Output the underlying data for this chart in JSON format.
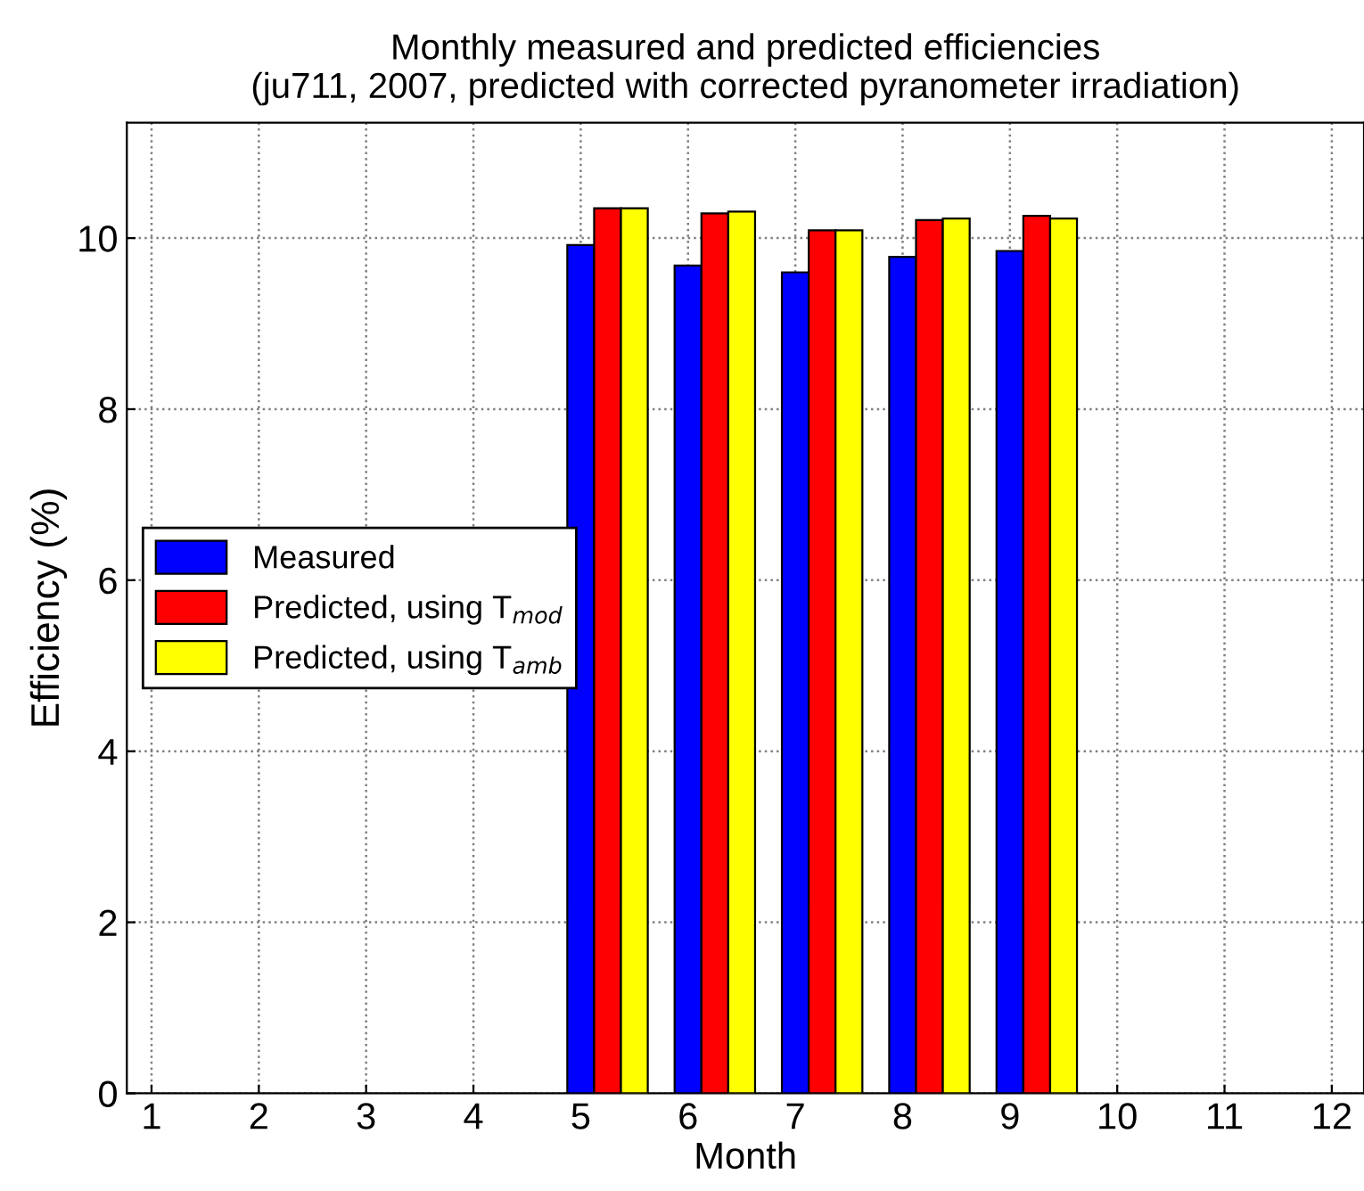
{
  "chart_data": {
    "type": "bar",
    "title": "Monthly measured and predicted efficiencies\n(ju711, 2007, predicted with corrected pyranometer irradiation)",
    "xlabel": "Month",
    "ylabel": "Efficiency (%)",
    "x": [
      5,
      6,
      7,
      8,
      9
    ],
    "series": [
      {
        "name": "Measured",
        "color": "#0000ff",
        "values": [
          9.92,
          9.68,
          9.6,
          9.78,
          9.85
        ]
      },
      {
        "name": "Predicted, using T$_{mod}$",
        "color": "#ff0000",
        "values": [
          10.35,
          10.29,
          10.09,
          10.21,
          10.26
        ]
      },
      {
        "name": "Predicted, using T$_{amb}$",
        "color": "#ffff00",
        "values": [
          10.35,
          10.31,
          10.09,
          10.23,
          10.23
        ]
      }
    ],
    "xlim": [
      0.77,
      12.3
    ],
    "xticks": [
      1,
      2,
      3,
      4,
      5,
      6,
      7,
      8,
      9,
      10,
      11,
      12
    ],
    "ylim": [
      0,
      11.35
    ],
    "yticks": [
      0,
      2,
      4,
      6,
      8,
      10
    ],
    "grid": true,
    "legend": "center left"
  }
}
